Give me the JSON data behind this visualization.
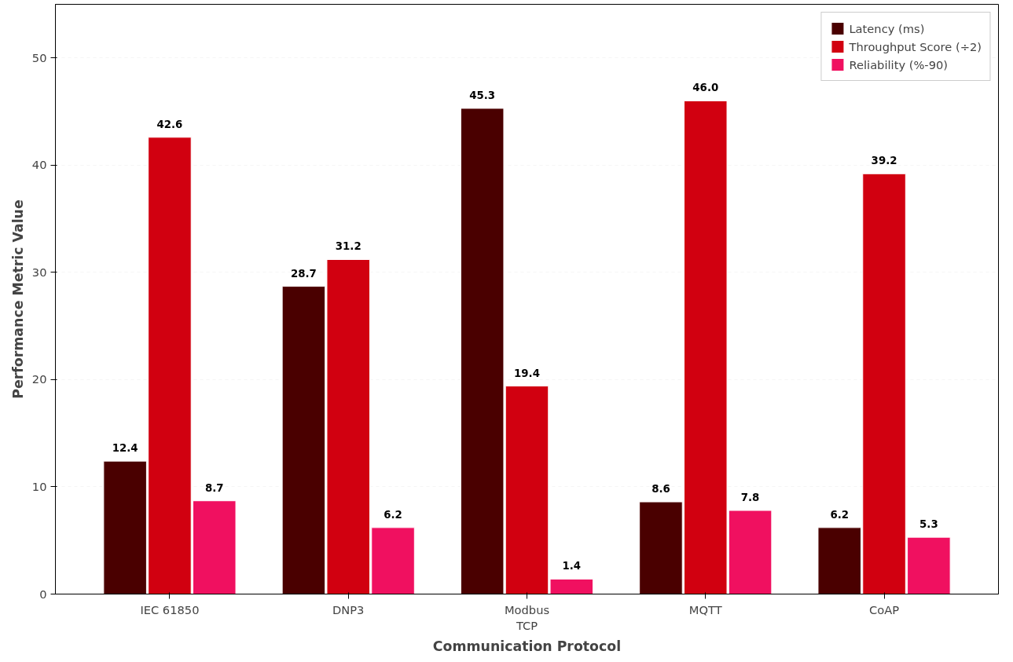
{
  "chart_data": {
    "type": "bar",
    "xlabel": "Communication Protocol",
    "ylabel": "Performance Metric Value",
    "categories": [
      "IEC 61850",
      "DNP3",
      "Modbus\nTCP",
      "MQTT",
      "CoAP"
    ],
    "series": [
      {
        "name": "Latency (ms)",
        "color": "#4a0000",
        "values": [
          12.4,
          28.7,
          45.3,
          8.6,
          6.2
        ],
        "value_labels": [
          "12.4",
          "28.7",
          "45.3",
          "8.6",
          "6.2"
        ]
      },
      {
        "name": "Throughput Score (÷2)",
        "color": "#d10010",
        "values": [
          42.6,
          31.2,
          19.4,
          46.0,
          39.2
        ],
        "value_labels": [
          "42.6",
          "31.2",
          "19.4",
          "46.0",
          "39.2"
        ]
      },
      {
        "name": "Reliability (%-90)",
        "color": "#f01060",
        "values": [
          8.7,
          6.2,
          1.4,
          7.8,
          5.3
        ],
        "value_labels": [
          "8.7",
          "6.2",
          "1.4",
          "7.8",
          "5.3"
        ]
      }
    ],
    "ylim": [
      0,
      55
    ],
    "yticks": [
      0,
      10,
      20,
      30,
      40,
      50
    ],
    "grid": "y",
    "legend": "top right"
  }
}
